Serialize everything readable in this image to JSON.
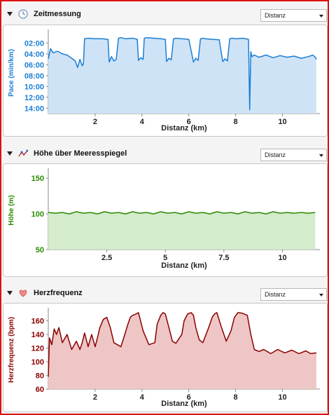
{
  "panels": [
    {
      "title": "Zeitmessung",
      "icon": "clock-icon",
      "dropdown": "Distanz",
      "chart_data": {
        "type": "area",
        "ylabel": "Pace (min/km)",
        "xlabel": "Distanz (km)",
        "y_inverted": true,
        "xlim": [
          0,
          11.6
        ],
        "ylim": [
          0,
          15
        ],
        "yticks": [
          2,
          4,
          6,
          8,
          10,
          12,
          14
        ],
        "ytick_labels": [
          "02:00",
          "04:00",
          "06:00",
          "08:00",
          "10:00",
          "12:00",
          "14:00"
        ],
        "xticks": [
          2,
          4,
          6,
          8,
          10
        ],
        "color": "#1a7fd4",
        "fill": "#cfe3f7",
        "x": [
          0.0,
          0.1,
          0.2,
          0.4,
          0.6,
          0.8,
          1.0,
          1.15,
          1.25,
          1.35,
          1.45,
          1.5,
          1.55,
          1.7,
          2.0,
          2.3,
          2.55,
          2.6,
          2.7,
          2.8,
          2.9,
          3.0,
          3.1,
          3.3,
          3.6,
          3.8,
          3.85,
          3.95,
          4.05,
          4.1,
          4.2,
          4.5,
          4.8,
          5.0,
          5.05,
          5.15,
          5.25,
          5.35,
          5.45,
          5.7,
          6.0,
          6.2,
          6.3,
          6.4,
          6.5,
          6.6,
          6.7,
          7.0,
          7.3,
          7.45,
          7.55,
          7.65,
          7.75,
          7.85,
          8.0,
          8.3,
          8.55,
          8.6,
          8.65,
          8.7,
          8.8,
          9.0,
          9.3,
          9.6,
          9.9,
          10.2,
          10.5,
          10.8,
          11.1,
          11.3,
          11.4,
          11.45
        ],
        "y": [
          4.9,
          3.0,
          3.8,
          3.5,
          4.0,
          4.2,
          4.8,
          5.3,
          6.5,
          5.0,
          6.2,
          5.8,
          1.2,
          1.1,
          1.2,
          1.2,
          1.3,
          5.5,
          4.5,
          5.3,
          5.0,
          1.1,
          1.0,
          1.2,
          1.1,
          1.3,
          5.2,
          4.7,
          5.0,
          1.1,
          1.0,
          1.1,
          1.2,
          1.3,
          5.4,
          4.8,
          5.1,
          1.2,
          1.1,
          1.2,
          1.3,
          5.5,
          4.8,
          5.2,
          1.2,
          1.1,
          1.2,
          1.3,
          1.4,
          5.4,
          4.9,
          5.3,
          1.2,
          1.1,
          1.2,
          1.1,
          1.3,
          14.3,
          3.6,
          4.5,
          4.2,
          4.6,
          4.2,
          4.7,
          4.3,
          4.6,
          4.4,
          4.8,
          4.5,
          4.2,
          4.6,
          5.0
        ]
      }
    },
    {
      "title": "Höhe über Meeresspiegel",
      "icon": "elevation-icon",
      "dropdown": "Distanz",
      "chart_data": {
        "type": "area",
        "ylabel": "Höhe (m)",
        "xlabel": "Distanz (km)",
        "xlim": [
          0,
          11.6
        ],
        "ylim": [
          50,
          160
        ],
        "yticks": [
          50,
          100,
          150
        ],
        "ytick_labels": [
          "50",
          "100",
          "150"
        ],
        "xticks": [
          2.5,
          5,
          7.5,
          10
        ],
        "xtick_labels": [
          "2.5",
          "5",
          "7.5",
          "10"
        ],
        "color": "#2a8a00",
        "fill": "#d4ebcc",
        "x": [
          0.0,
          0.3,
          0.6,
          0.9,
          1.2,
          1.5,
          1.8,
          2.1,
          2.4,
          2.7,
          3.0,
          3.3,
          3.6,
          3.9,
          4.2,
          4.5,
          4.8,
          5.1,
          5.4,
          5.7,
          6.0,
          6.3,
          6.6,
          6.9,
          7.2,
          7.5,
          7.8,
          8.1,
          8.4,
          8.7,
          9.0,
          9.3,
          9.6,
          9.9,
          10.2,
          10.5,
          10.8,
          11.1,
          11.4
        ],
        "y": [
          102,
          101,
          102,
          100,
          103,
          101,
          102,
          100,
          103,
          101,
          102,
          100,
          103,
          101,
          102,
          100,
          103,
          101,
          102,
          100,
          103,
          101,
          102,
          100,
          103,
          101,
          102,
          100,
          103,
          101,
          102,
          100,
          103,
          101,
          102,
          101,
          102,
          101,
          102
        ]
      }
    },
    {
      "title": "Herzfrequenz",
      "icon": "heart-icon",
      "dropdown": "Distanz",
      "chart_data": {
        "type": "area",
        "ylabel": "Herzfrequenz (bpm)",
        "xlabel": "Distanz (km)",
        "xlim": [
          0,
          11.6
        ],
        "ylim": [
          60,
          175
        ],
        "yticks": [
          60,
          80,
          100,
          120,
          140,
          160
        ],
        "ytick_labels": [
          "60",
          "80",
          "100",
          "120",
          "140",
          "160"
        ],
        "xticks": [
          2,
          4,
          6,
          8,
          10
        ],
        "color": "#8b0000",
        "fill": "#efc6c6",
        "x": [
          0.0,
          0.05,
          0.15,
          0.25,
          0.35,
          0.45,
          0.6,
          0.8,
          1.0,
          1.2,
          1.35,
          1.45,
          1.55,
          1.7,
          1.85,
          2.0,
          2.1,
          2.2,
          2.35,
          2.5,
          2.65,
          2.8,
          2.95,
          3.1,
          3.25,
          3.4,
          3.5,
          3.6,
          3.75,
          3.85,
          4.05,
          4.3,
          4.55,
          4.65,
          4.8,
          4.9,
          5.0,
          5.15,
          5.3,
          5.45,
          5.7,
          5.8,
          5.95,
          6.1,
          6.2,
          6.3,
          6.45,
          6.6,
          6.85,
          7.0,
          7.1,
          7.2,
          7.4,
          7.6,
          7.8,
          7.95,
          8.1,
          8.3,
          8.5,
          8.65,
          8.8,
          9.0,
          9.2,
          9.5,
          9.8,
          10.1,
          10.4,
          10.7,
          11.0,
          11.2,
          11.45
        ],
        "y": [
          78,
          135,
          125,
          148,
          140,
          150,
          128,
          140,
          118,
          130,
          118,
          128,
          142,
          122,
          140,
          122,
          135,
          150,
          162,
          165,
          150,
          128,
          125,
          122,
          138,
          155,
          165,
          168,
          170,
          172,
          145,
          125,
          128,
          155,
          168,
          172,
          170,
          150,
          130,
          127,
          140,
          160,
          170,
          172,
          168,
          150,
          132,
          128,
          150,
          165,
          170,
          172,
          150,
          130,
          145,
          165,
          172,
          171,
          168,
          140,
          118,
          115,
          118,
          112,
          118,
          113,
          117,
          112,
          116,
          112,
          113
        ]
      }
    }
  ]
}
